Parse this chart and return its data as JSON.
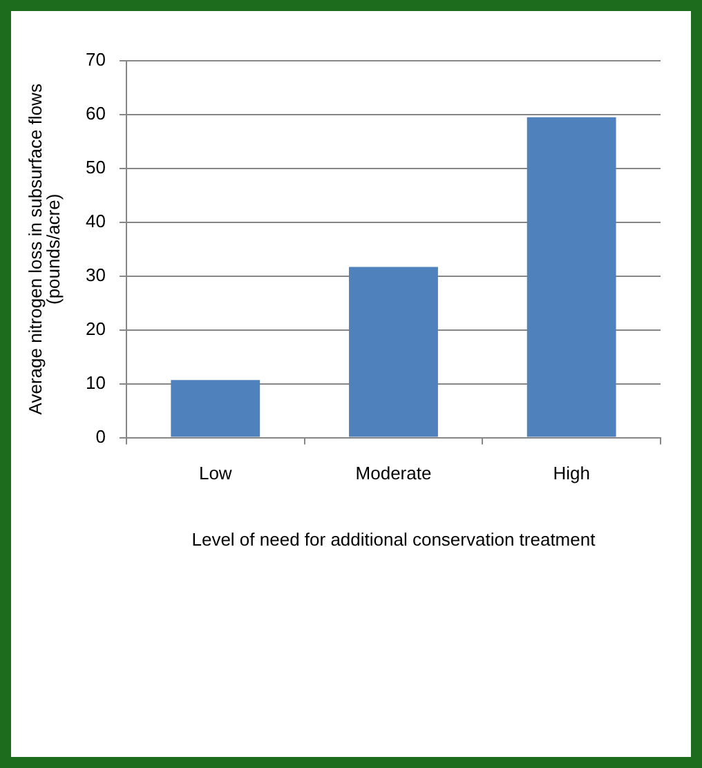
{
  "chart_data": {
    "type": "bar",
    "xlabel": "Level of need for additional conservation treatment",
    "ylabel": "Average nitrogen loss in subsurface flows (pounds/acre)",
    "categories": [
      "Low",
      "Moderate",
      "High"
    ],
    "values": [
      10.7,
      31.7,
      59.5
    ],
    "color": "#4f81bd",
    "ylim": [
      0,
      70
    ],
    "yticks": [
      0,
      10,
      20,
      30,
      40,
      50,
      60,
      70
    ],
    "grid": "y",
    "legend": false
  }
}
